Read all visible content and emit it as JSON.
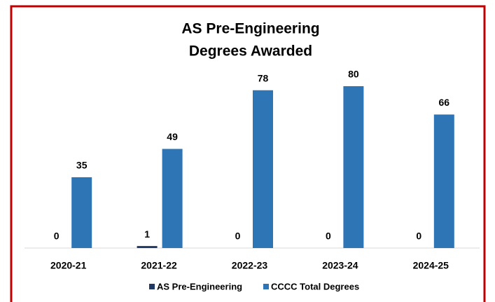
{
  "chart_data": {
    "type": "bar",
    "title": [
      "AS Pre-Engineering",
      "Degrees Awarded"
    ],
    "categories": [
      "2020-21",
      "2021-22",
      "2022-23",
      "2023-24",
      "2024-25"
    ],
    "series": [
      {
        "name": "AS Pre-Engineering",
        "color": "#1f3864",
        "values": [
          0,
          1,
          0,
          0,
          0
        ]
      },
      {
        "name": "CCCC Total Degrees",
        "color": "#2e75b6",
        "values": [
          35,
          49,
          78,
          80,
          66
        ]
      }
    ],
    "legend": "bottom"
  }
}
